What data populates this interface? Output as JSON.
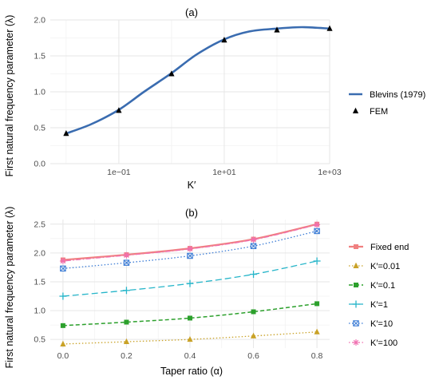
{
  "chart_data": [
    {
      "type": "line",
      "title": "(a)",
      "xlabel": "K′",
      "ylabel": "First natural frequency parameter (λ)",
      "x_scale": "log",
      "xlim": [
        0.005,
        1000
      ],
      "ylim": [
        0,
        2.0
      ],
      "x_ticks": [
        0.1,
        10,
        1000
      ],
      "x_tick_labels": [
        "1e−01",
        "1e+01",
        "1e+03"
      ],
      "y_ticks": [
        0,
        0.5,
        1.0,
        1.5,
        2.0
      ],
      "y_tick_labels": [
        "0.0",
        "0.5",
        "1.0",
        "1.5",
        "2.0"
      ],
      "grid": true,
      "legend_position": "right",
      "series": [
        {
          "name": "Blevins (1979)",
          "kind": "line",
          "color": "#3a6cb0",
          "x": [
            0.01,
            0.03,
            0.1,
            0.3,
            1,
            3,
            10,
            30,
            100,
            300,
            1000
          ],
          "y": [
            0.42,
            0.55,
            0.75,
            1.0,
            1.26,
            1.52,
            1.73,
            1.84,
            1.88,
            1.9,
            1.88
          ]
        },
        {
          "name": "FEM",
          "kind": "points",
          "marker": "triangle",
          "color": "#000000",
          "x": [
            0.01,
            0.1,
            1,
            10,
            100,
            1000
          ],
          "y": [
            0.42,
            0.74,
            1.25,
            1.72,
            1.86,
            1.88
          ]
        }
      ]
    },
    {
      "type": "line",
      "title": "(b)",
      "xlabel": "Taper ratio (α)",
      "ylabel": "First natural frequency parameter (λ)",
      "xlim": [
        -0.04,
        0.84
      ],
      "ylim": [
        0.35,
        2.58
      ],
      "x_ticks": [
        0,
        0.2,
        0.4,
        0.6,
        0.8
      ],
      "x_tick_labels": [
        "0.0",
        "0.2",
        "0.4",
        "0.6",
        "0.8"
      ],
      "y_ticks": [
        0.5,
        1.0,
        1.5,
        2.0,
        2.5
      ],
      "y_tick_labels": [
        "0.5",
        "1.0",
        "1.5",
        "2.0",
        "2.5"
      ],
      "grid": true,
      "legend_position": "right",
      "x": [
        0,
        0.2,
        0.4,
        0.6,
        0.8
      ],
      "series": [
        {
          "name": "Fixed end",
          "color": "#f08080",
          "marker": "square",
          "dash": "solid",
          "width": 2.2,
          "values": [
            1.88,
            1.97,
            2.08,
            2.24,
            2.5
          ]
        },
        {
          "name": "K′=0.01",
          "color": "#c9a227",
          "marker": "triangle",
          "dash": "dotted",
          "width": 1.3,
          "values": [
            0.42,
            0.46,
            0.5,
            0.56,
            0.63
          ]
        },
        {
          "name": "K′=0.1",
          "color": "#2ca02c",
          "marker": "square",
          "dash": "dashed",
          "width": 1.5,
          "values": [
            0.74,
            0.8,
            0.87,
            0.98,
            1.12
          ]
        },
        {
          "name": "K′=1",
          "color": "#26b5c9",
          "marker": "plus",
          "dash": "longdash",
          "width": 1.3,
          "values": [
            1.25,
            1.35,
            1.47,
            1.63,
            1.86
          ]
        },
        {
          "name": "K′=10",
          "color": "#3a7bd5",
          "marker": "boxcross",
          "dash": "dotted",
          "width": 1.3,
          "values": [
            1.73,
            1.83,
            1.95,
            2.12,
            2.38
          ]
        },
        {
          "name": "K′=100",
          "color": "#f06fb0",
          "marker": "asterisk",
          "dash": "dashdot",
          "width": 1.3,
          "values": [
            1.86,
            1.96,
            2.07,
            2.23,
            2.49
          ]
        }
      ]
    }
  ]
}
